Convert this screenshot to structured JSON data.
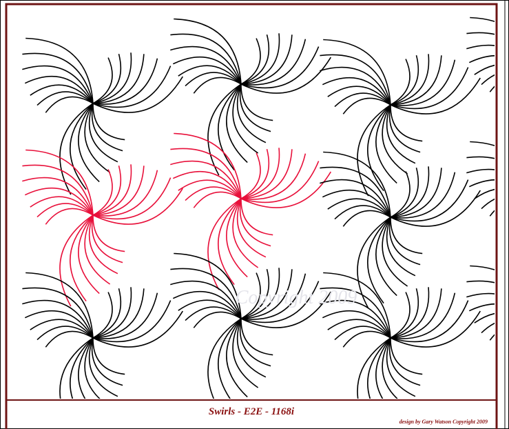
{
  "pattern": {
    "title": "Swirls - E2E - 1168i",
    "credit": "design by Gary Watson Copyright 2009",
    "watermark": "Copyright 2009"
  }
}
